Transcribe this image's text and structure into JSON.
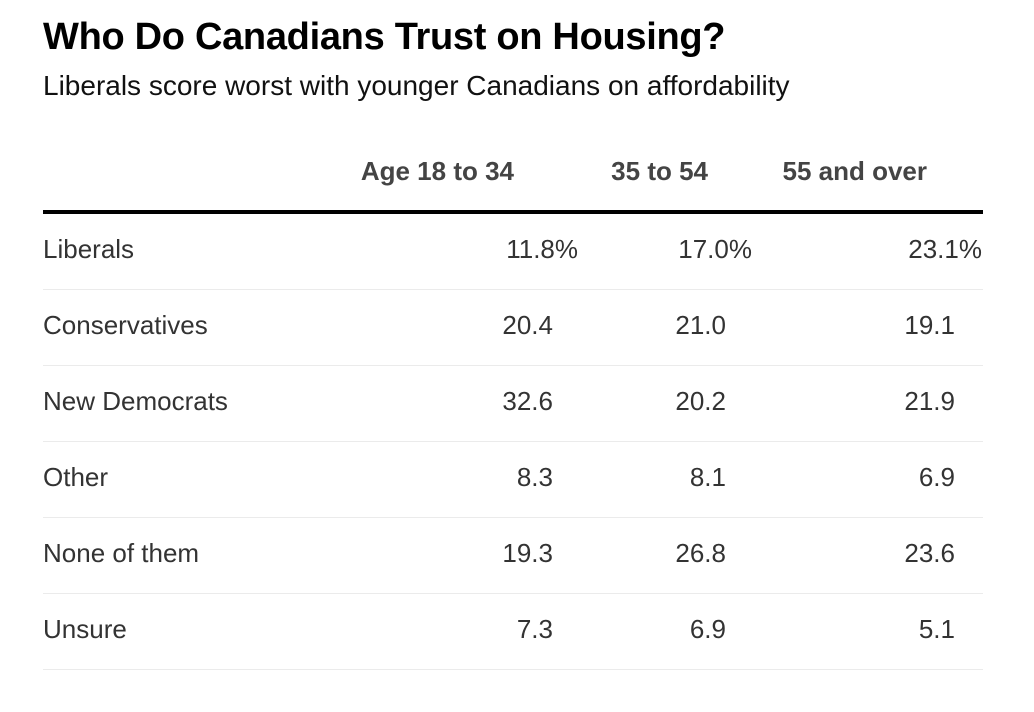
{
  "chart_data": {
    "type": "table",
    "title": "Who Do Canadians Trust on Housing?",
    "subtitle": "Liberals score worst with younger Canadians on affordability",
    "columns": [
      "Age 18 to 34",
      "35 to 54",
      "55 and over"
    ],
    "rows": [
      {
        "label": "Liberals",
        "values": [
          "11.8%",
          "17.0%",
          "23.1%"
        ]
      },
      {
        "label": "Conservatives",
        "values": [
          "20.4",
          "21.0",
          "19.1"
        ]
      },
      {
        "label": "New Democrats",
        "values": [
          "32.6",
          "20.2",
          "21.9"
        ]
      },
      {
        "label": "Other",
        "values": [
          "8.3",
          "8.1",
          "6.9"
        ]
      },
      {
        "label": "None of them",
        "values": [
          "19.3",
          "26.8",
          "23.6"
        ]
      },
      {
        "label": "Unsure",
        "values": [
          "7.3",
          "6.9",
          "5.1"
        ]
      }
    ]
  }
}
